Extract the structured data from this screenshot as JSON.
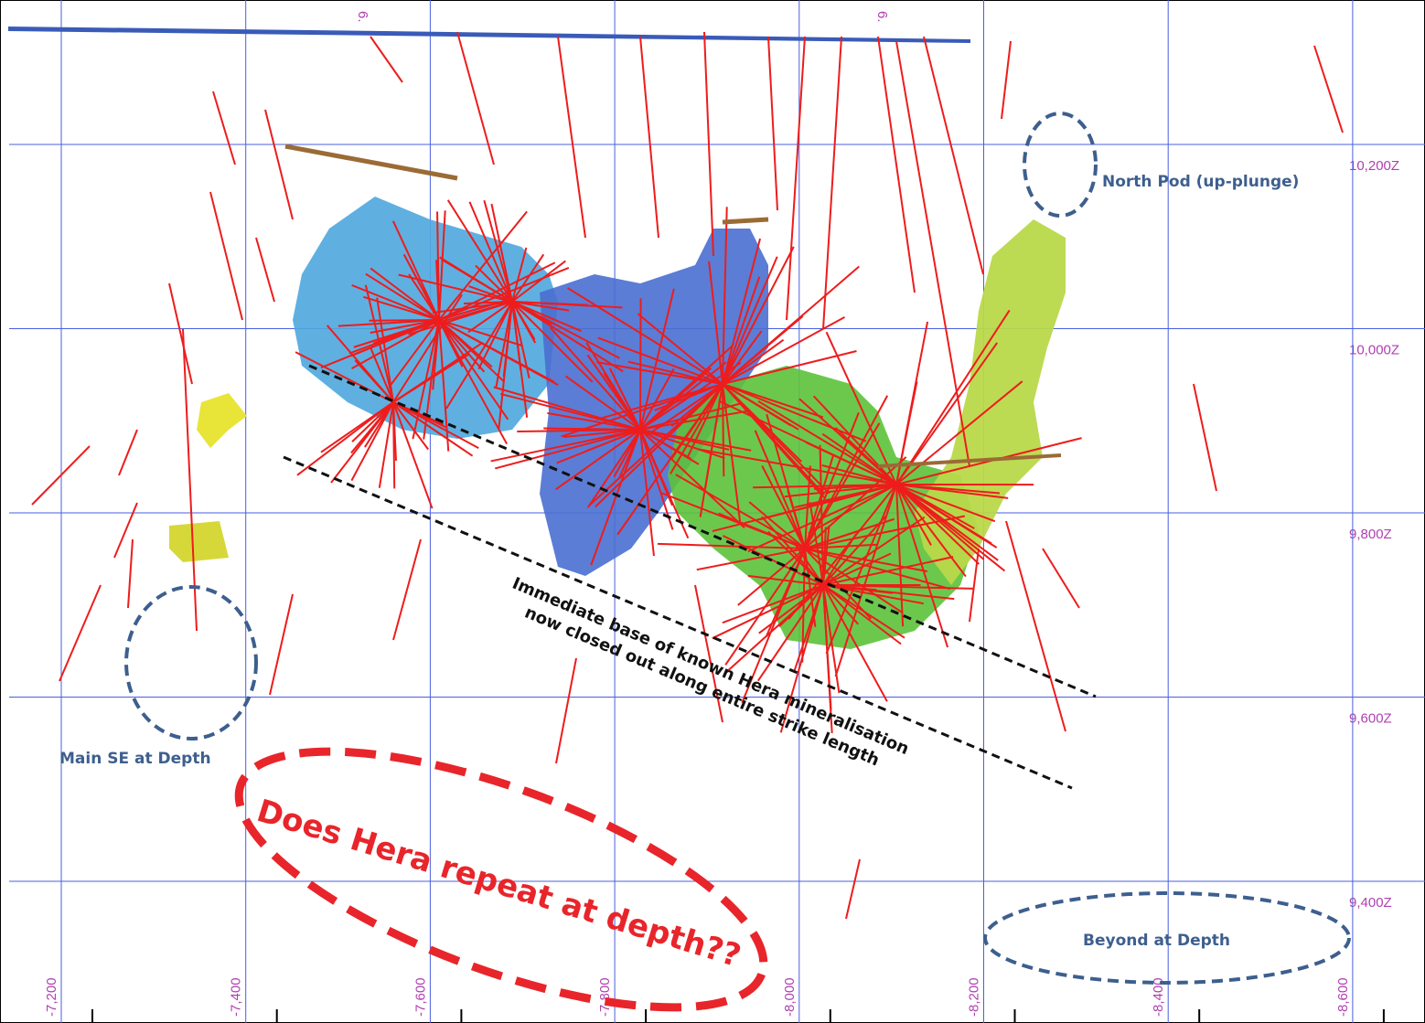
{
  "section": {
    "z_labels": [
      "10,200Z",
      "10,000Z",
      "9,800Z",
      "9,600Z",
      "9,400Z"
    ],
    "x_labels": [
      "-7,200",
      "-7,400",
      "-7,600",
      "-7,800",
      "-8,000",
      "-8,200",
      "-8,400",
      "-8,600"
    ],
    "top_labels": [
      "6.",
      "6."
    ]
  },
  "annotations": {
    "north_pod": "North Pod (up-plunge)",
    "main_se": "Main SE at Depth",
    "beyond": "Beyond at Depth",
    "base_line_1": "Immediate base of known Hera mineralisation",
    "base_line_2": "now closed out along entire strike length",
    "question": "Does Hera repeat at depth??"
  }
}
